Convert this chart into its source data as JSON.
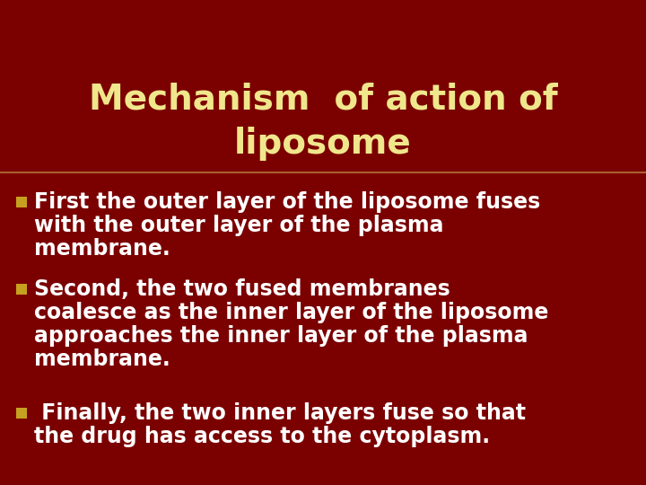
{
  "background_color": "#7B0000",
  "title_line1": "Mechanism  of action of",
  "title_line2": "liposome",
  "title_color": "#F0E68C",
  "title_fontsize": 28,
  "title_fontweight": "bold",
  "bullet_marker_color": "#C8A020",
  "body_color": "#FFFFFF",
  "body_fontsize": 17,
  "body_fontweight": "bold",
  "bullet1_lines": [
    "n  First the outer layer of the liposome fuses",
    "   with the outer layer of the plasma",
    "   membrane."
  ],
  "bullet2_lines": [
    "n  Second, the two fused membranes",
    "   coalesce as the inner layer of the liposome",
    "   approaches the inner layer of the plasma",
    "   membrane."
  ],
  "bullet3_lines": [
    "n   Finally, the two inner layers fuse so that",
    "   the drug has access to the cytoplasm."
  ]
}
